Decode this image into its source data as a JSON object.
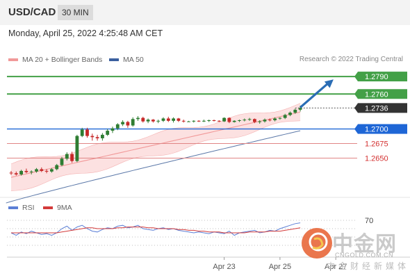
{
  "header": {
    "symbol": "USD/CAD",
    "timeframe": "30 MIN"
  },
  "datetime": "Monday, April 25, 2022 4:25:48 AM CET",
  "legend": {
    "bollinger_label": "MA 20 + Bollinger Bands",
    "ma50_label": "MA 50",
    "copyright": "Research © 2022 Trading Central"
  },
  "rsi_legend": {
    "rsi_label": "RSI",
    "ma_label": "9MA"
  },
  "watermark": {
    "cn": "中金网",
    "url": "CNGOLD.COM.CN",
    "sub": "中金财经新媒体"
  },
  "colors": {
    "up": "#2e7d32",
    "down": "#c62828",
    "green_level": "#43a047",
    "blue_level": "#1e66d6",
    "red_level": "#e08585",
    "ma50": "#5b78a8",
    "bollinger_line": "#f19999",
    "bollinger_fill": "#fbdcdc",
    "arrow": "#2a6db5",
    "rsi": "#5b7fd6",
    "rsi_ma": "#d33a3a"
  },
  "chart_data": {
    "type": "candlestick",
    "y_range": [
      1.2585,
      1.2808
    ],
    "levels": [
      {
        "value": 1.279,
        "label": "1.2790",
        "kind": "resistance"
      },
      {
        "value": 1.276,
        "label": "1.2760",
        "kind": "resistance"
      },
      {
        "value": 1.2736,
        "label": "1.2736",
        "kind": "current"
      },
      {
        "value": 1.27,
        "label": "1.2700",
        "kind": "pivot"
      },
      {
        "value": 1.2675,
        "label": "1.2675",
        "kind": "support"
      },
      {
        "value": 1.265,
        "label": "1.2650",
        "kind": "support"
      }
    ],
    "x_ticks": [
      {
        "index": 42,
        "label": "Apr 23"
      },
      {
        "index": 53,
        "label": "Apr 25"
      },
      {
        "index": 64,
        "label": "Apr 27"
      }
    ],
    "candles": [
      [
        1.2625,
        1.2628,
        1.2621,
        1.2624
      ],
      [
        1.2624,
        1.2627,
        1.262,
        1.2622
      ],
      [
        1.2622,
        1.263,
        1.262,
        1.2628
      ],
      [
        1.2628,
        1.2632,
        1.2624,
        1.2626
      ],
      [
        1.2626,
        1.2629,
        1.2622,
        1.2627
      ],
      [
        1.2627,
        1.2633,
        1.2625,
        1.2631
      ],
      [
        1.2631,
        1.2634,
        1.2626,
        1.2628
      ],
      [
        1.2628,
        1.2631,
        1.2624,
        1.2627
      ],
      [
        1.2627,
        1.2633,
        1.2625,
        1.2631
      ],
      [
        1.2631,
        1.264,
        1.2629,
        1.2638
      ],
      [
        1.2638,
        1.2652,
        1.2636,
        1.2649
      ],
      [
        1.2649,
        1.266,
        1.2646,
        1.2657
      ],
      [
        1.2657,
        1.2661,
        1.2642,
        1.2645
      ],
      [
        1.2645,
        1.269,
        1.2643,
        1.2688
      ],
      [
        1.2688,
        1.2702,
        1.2686,
        1.2699
      ],
      [
        1.2699,
        1.2702,
        1.2685,
        1.2688
      ],
      [
        1.2688,
        1.2692,
        1.268,
        1.2686
      ],
      [
        1.2686,
        1.269,
        1.268,
        1.2684
      ],
      [
        1.2684,
        1.2693,
        1.268,
        1.269
      ],
      [
        1.269,
        1.27,
        1.2688,
        1.2697
      ],
      [
        1.2697,
        1.2704,
        1.2693,
        1.2701
      ],
      [
        1.2701,
        1.271,
        1.2698,
        1.2708
      ],
      [
        1.2708,
        1.2715,
        1.2705,
        1.2712
      ],
      [
        1.2712,
        1.2714,
        1.2702,
        1.2706
      ],
      [
        1.2706,
        1.272,
        1.2704,
        1.2717
      ],
      [
        1.2717,
        1.2722,
        1.2714,
        1.2719
      ],
      [
        1.2719,
        1.2721,
        1.2711,
        1.2713
      ],
      [
        1.2713,
        1.2718,
        1.271,
        1.2716
      ],
      [
        1.2716,
        1.2717,
        1.2711,
        1.2713
      ],
      [
        1.2713,
        1.2716,
        1.271,
        1.2714
      ],
      [
        1.2714,
        1.272,
        1.2712,
        1.2718
      ],
      [
        1.2718,
        1.2721,
        1.2712,
        1.2714
      ],
      [
        1.2714,
        1.272,
        1.2711,
        1.2718
      ],
      [
        1.2718,
        1.2719,
        1.2712,
        1.2714
      ],
      [
        1.2714,
        1.2716,
        1.2711,
        1.2713
      ],
      [
        1.2713,
        1.2714,
        1.2712,
        1.2713
      ],
      [
        1.2713,
        1.2715,
        1.2711,
        1.2714
      ],
      [
        1.2714,
        1.2715,
        1.2712,
        1.2713
      ],
      [
        1.2713,
        1.2716,
        1.2712,
        1.2714
      ],
      [
        1.2714,
        1.2716,
        1.2712,
        1.2715
      ],
      [
        1.2715,
        1.2716,
        1.2713,
        1.2714
      ],
      [
        1.2714,
        1.2715,
        1.2712,
        1.2713
      ],
      [
        1.2713,
        1.272,
        1.2712,
        1.2719
      ],
      [
        1.2719,
        1.272,
        1.271,
        1.2712
      ],
      [
        1.2712,
        1.2715,
        1.2711,
        1.2714
      ],
      [
        1.2714,
        1.2716,
        1.2712,
        1.2715
      ],
      [
        1.2715,
        1.2718,
        1.2713,
        1.2716
      ],
      [
        1.2716,
        1.2719,
        1.2714,
        1.2717
      ],
      [
        1.2717,
        1.2718,
        1.271,
        1.2712
      ],
      [
        1.2712,
        1.2715,
        1.2709,
        1.2713
      ],
      [
        1.2713,
        1.2718,
        1.2711,
        1.2716
      ],
      [
        1.2716,
        1.2718,
        1.2713,
        1.2715
      ],
      [
        1.2715,
        1.272,
        1.2713,
        1.2718
      ],
      [
        1.2718,
        1.272,
        1.2716,
        1.2719
      ],
      [
        1.2719,
        1.2726,
        1.2717,
        1.2724
      ],
      [
        1.2724,
        1.273,
        1.2722,
        1.2728
      ],
      [
        1.2728,
        1.2735,
        1.2726,
        1.2733
      ],
      [
        1.2733,
        1.274,
        1.273,
        1.2736
      ]
    ],
    "ma50": {
      "start": 1.2573,
      "end": 1.2697
    },
    "bollinger": {
      "mid_start": 1.2617,
      "mid_end": 1.2729,
      "upper_start": 1.264,
      "upper_end": 1.2742,
      "lower_start": 1.2594,
      "lower_end": 1.2716
    },
    "projection_arrow": {
      "from_index": 57,
      "from_value": 1.2737,
      "to_index": 63,
      "to_value": 1.2785
    },
    "rsi_ticks": [
      70
    ],
    "rsi_values": [
      55,
      52,
      56,
      54,
      57,
      55,
      53,
      54,
      52,
      55,
      60,
      63,
      58,
      62,
      64,
      60,
      57,
      56,
      59,
      61,
      60,
      63,
      64,
      61,
      62,
      64,
      60,
      59,
      58,
      60,
      61,
      59,
      60,
      58,
      57,
      56,
      55,
      56,
      55,
      54,
      56,
      55,
      54,
      57,
      52,
      55,
      56,
      57,
      58,
      55,
      56,
      58,
      57,
      60,
      62,
      64,
      66,
      67
    ],
    "rsi_ma_values": [
      55,
      55,
      55,
      55,
      55,
      55,
      55,
      55,
      55,
      55,
      56,
      57,
      58,
      59,
      60,
      61,
      61,
      60,
      60,
      60,
      60,
      61,
      61,
      62,
      62,
      62,
      62,
      61,
      61,
      60,
      60,
      60,
      60,
      59,
      59,
      58,
      58,
      57,
      57,
      56,
      56,
      56,
      55,
      55,
      55,
      55,
      55,
      56,
      56,
      56,
      56,
      57,
      57,
      57,
      58,
      59,
      60,
      61
    ]
  }
}
